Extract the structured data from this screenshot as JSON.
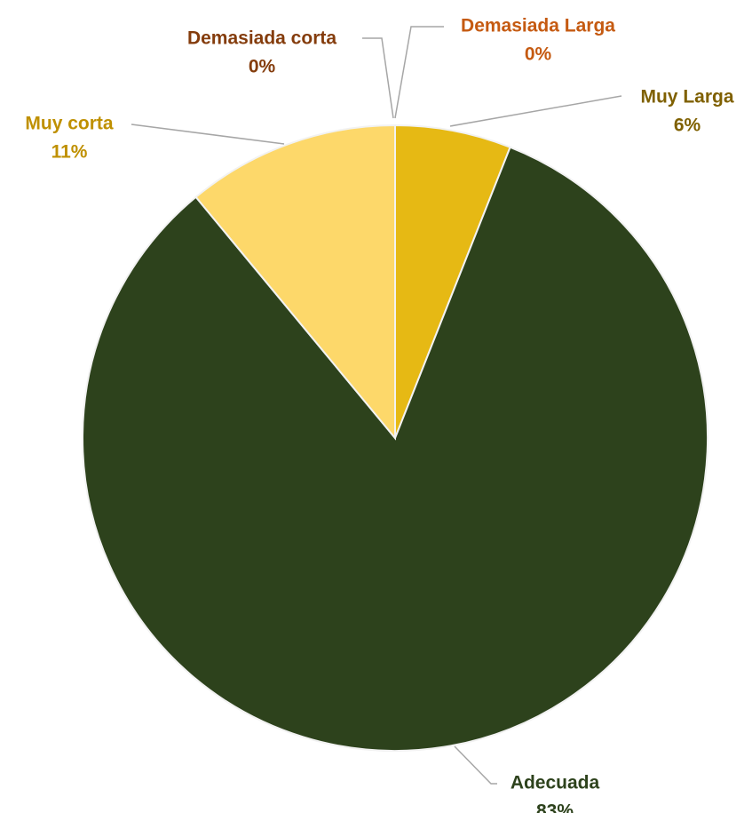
{
  "chart_data": {
    "type": "pie",
    "title": "",
    "start_angle_deg": 0,
    "direction": "clockwise",
    "slices": [
      {
        "label": "Demasiada Larga",
        "value": 0,
        "value_label": "0%",
        "color": "#E07020",
        "label_color": "#C55A11"
      },
      {
        "label": "Muy Larga",
        "value": 6,
        "value_label": "6%",
        "color": "#E6B914",
        "label_color": "#7F6000"
      },
      {
        "label": "Adecuada",
        "value": 83,
        "value_label": "83%",
        "color": "#2D421C",
        "label_color": "#2D421C"
      },
      {
        "label": "Muy corta",
        "value": 11,
        "value_label": "11%",
        "color": "#FDD86A",
        "label_color": "#BF9000"
      },
      {
        "label": "Demasiada corta",
        "value": 0,
        "value_label": "0%",
        "color": "#843C0C",
        "label_color": "#843C0C"
      }
    ],
    "leader_line_color": "#A6A6A6",
    "slice_border_color": "#F2F2F2"
  }
}
